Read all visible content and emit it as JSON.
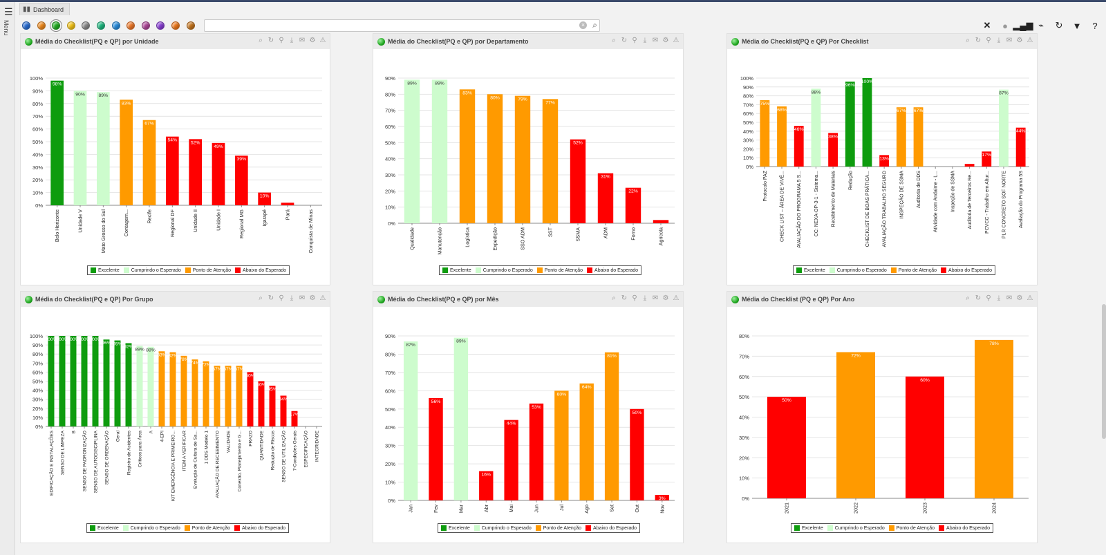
{
  "app": {
    "tab_label": "Dashboard",
    "menu_label": "Menu"
  },
  "toolbar": {
    "filter_colors": [
      "#2a6fd6",
      "#f08a1c",
      "#22b022",
      "#f5c518",
      "#8a8a8a",
      "#1fb880",
      "#2a8fe0",
      "#f07a2a",
      "#b0489a",
      "#8a3fd6",
      "#f07a1c",
      "#c7761e"
    ],
    "selected_index": 2,
    "search_placeholder": "",
    "icons": [
      "close-icon",
      "globe-icon",
      "bar-chart-icon",
      "pulse-icon",
      "refresh-icon",
      "filter-icon",
      "help-icon"
    ]
  },
  "legend": {
    "items": [
      "Excelente",
      "Cumprindo o Esperado",
      "Ponto de Atenção",
      "Abaixo do Esperado"
    ],
    "colors": [
      "#0e9c0e",
      "#cdfccd",
      "#ff9a00",
      "#ff0000"
    ]
  },
  "panels": [
    {
      "title": "Média do Checklist(PQ e QP) por Unidade"
    },
    {
      "title": "Média do Checklist(PQ e QP) por Departamento"
    },
    {
      "title": "Média do Checklist(PQ e QP) Por Checklist"
    },
    {
      "title": "Média do Checklist(PQ e QP) Por Grupo"
    },
    {
      "title": "Média do Checklist(PQ e QP) por Mês"
    },
    {
      "title": "Média do Checklist (PQ e QP) Por Ano"
    }
  ],
  "chart_data": [
    {
      "type": "bar",
      "ylim": [
        0,
        100
      ],
      "ticks": [
        0,
        10,
        20,
        30,
        40,
        50,
        60,
        70,
        80,
        90,
        100
      ],
      "categories": [
        "Belo Horizonte",
        "Unidade V",
        "Mato Grosso do Sul",
        "Contagem...",
        "Recife",
        "Regional DF",
        "Unidade II",
        "Unidade I",
        "Regional MG",
        "Igarapé",
        "Pará",
        "Conquista de Minas"
      ],
      "values": [
        98,
        90,
        89,
        83,
        67,
        54,
        52,
        49,
        39,
        10,
        2,
        0
      ],
      "labels": [
        "98%",
        "90%",
        "89%",
        "83%",
        "67%",
        "54%",
        "52%",
        "49%",
        "39%",
        "10%",
        "",
        ""
      ],
      "status": [
        0,
        1,
        1,
        2,
        2,
        3,
        3,
        3,
        3,
        3,
        3,
        3
      ]
    },
    {
      "type": "bar",
      "ylim": [
        0,
        90
      ],
      "ticks": [
        0,
        10,
        20,
        30,
        40,
        50,
        60,
        70,
        80,
        90
      ],
      "categories": [
        "Qualidade",
        "Manutenção",
        "Logística",
        "Expedição",
        "SSO ADM",
        "SST",
        "SSMA",
        "ADM",
        "Forno",
        "Agrícola"
      ],
      "values": [
        89,
        89,
        83,
        80,
        79,
        77,
        52,
        31,
        22,
        2
      ],
      "labels": [
        "89%",
        "89%",
        "83%",
        "80%",
        "79%",
        "77%",
        "52%",
        "31%",
        "22%",
        ""
      ],
      "status": [
        1,
        1,
        2,
        2,
        2,
        2,
        3,
        3,
        3,
        3
      ]
    },
    {
      "type": "bar",
      "ylim": [
        0,
        100
      ],
      "ticks": [
        0,
        10,
        20,
        30,
        40,
        50,
        60,
        70,
        80,
        90,
        100
      ],
      "categories": [
        "Protocolo PAZ",
        "CHECK LIST – ÁREA DE VIVÊ...",
        "AVALIAÇÃO DO PROGRAMA 5 S...",
        "CC: NEXA-OP-3-1 - Sistema...",
        "Recebimento de Materiais",
        "Redução",
        "CHECKLIST DE BOAS PRÁTICA...",
        "AVALIAÇÃO TRABALHO SEGURO",
        "INSPEÇÃO DE SSMA",
        "Auditoria de DDS",
        "Atividade com Andaime - L...",
        "Inspeção de SSMA",
        "Auditoria de Terceiros Re...",
        "PCVCC - Trabalho em Altur...",
        "PLR CONCRETO SOF NORTE",
        "Avaliação do Programa 5S"
      ],
      "values": [
        75,
        68,
        46,
        88,
        38,
        96,
        100,
        13,
        67,
        67,
        0,
        0,
        3,
        17,
        87,
        44
      ],
      "labels": [
        "75%",
        "68%",
        "46%",
        "88%",
        "38%",
        "96%",
        "100%",
        "13%",
        "67%",
        "67%",
        "",
        "",
        "",
        "17%",
        "87%",
        "44%"
      ],
      "status": [
        2,
        2,
        3,
        1,
        3,
        0,
        0,
        3,
        2,
        2,
        3,
        3,
        3,
        3,
        1,
        3
      ]
    },
    {
      "type": "bar",
      "ylim": [
        0,
        100
      ],
      "ticks": [
        0,
        10,
        20,
        30,
        40,
        50,
        60,
        70,
        80,
        90,
        100
      ],
      "categories": [
        "EDIFICAÇÃO E INSTALAÇÕES",
        "SENSO DE LIMPEZA",
        "B",
        "SENSO DE PADRONIZAÇÃO",
        "SENSO DE AUTODISCIPLINA",
        "SENSO DE ORDENAÇÃO",
        "Geral",
        "Registro de Acidentes",
        "Críticos para Área",
        "A",
        "4-EPI",
        "KIT EMERGÊNCIA E PRIMEIRO...",
        "ITEM A VERIFICAR",
        "Evolução de Cultura de Sa...",
        "1 DDS Modelo 1",
        "AVALIAÇÃO DE RECEBIMENTO",
        "VALIDADE",
        "Conexão, Planejamento e G...",
        "PRAZO",
        "QUANTIDADE",
        "Redução de Riscos",
        "SENSO DE UTILIZAÇÃO",
        "7-Condições Gerais",
        "ESPECIFICAÇÃO",
        "INTEGRIDADE"
      ],
      "values": [
        100,
        100,
        100,
        100,
        100,
        96,
        95,
        92,
        89,
        88,
        83,
        82,
        78,
        74,
        72,
        67,
        67,
        67,
        60,
        50,
        45,
        34,
        17,
        0,
        0
      ],
      "labels": [
        "100%",
        "100%",
        "100%",
        "100%",
        "100%",
        "96%",
        "95%",
        "92%",
        "89%",
        "88%",
        "83%",
        "82%",
        "78%",
        "74%",
        "72%",
        "67%",
        "67%",
        "67%",
        "60%",
        "50%",
        "45%",
        "34%",
        "17%",
        "",
        ""
      ],
      "status": [
        0,
        0,
        0,
        0,
        0,
        0,
        0,
        0,
        1,
        1,
        2,
        2,
        2,
        2,
        2,
        2,
        2,
        2,
        3,
        3,
        3,
        3,
        3,
        3,
        3
      ]
    },
    {
      "type": "bar",
      "ylim": [
        0,
        90
      ],
      "ticks": [
        0,
        10,
        20,
        30,
        40,
        50,
        60,
        70,
        80,
        90
      ],
      "categories": [
        "Jan",
        "Fev",
        "Mar",
        "Abr",
        "Mai",
        "Jun",
        "Jul",
        "Ago",
        "Set",
        "Out",
        "Nov"
      ],
      "values": [
        87,
        56,
        89,
        16,
        44,
        53,
        60,
        64,
        81,
        50,
        3
      ],
      "labels": [
        "87%",
        "56%",
        "89%",
        "16%",
        "44%",
        "53%",
        "60%",
        "64%",
        "81%",
        "50%",
        "3%"
      ],
      "status": [
        1,
        3,
        1,
        3,
        3,
        3,
        2,
        2,
        2,
        3,
        3
      ]
    },
    {
      "type": "bar",
      "ylim": [
        0,
        80
      ],
      "ticks": [
        0,
        10,
        20,
        30,
        40,
        50,
        60,
        70,
        80
      ],
      "categories": [
        "2021",
        "2022",
        "2023",
        "2024"
      ],
      "values": [
        50,
        72,
        60,
        78
      ],
      "labels": [
        "50%",
        "72%",
        "60%",
        "78%"
      ],
      "status": [
        3,
        2,
        3,
        2
      ]
    }
  ]
}
